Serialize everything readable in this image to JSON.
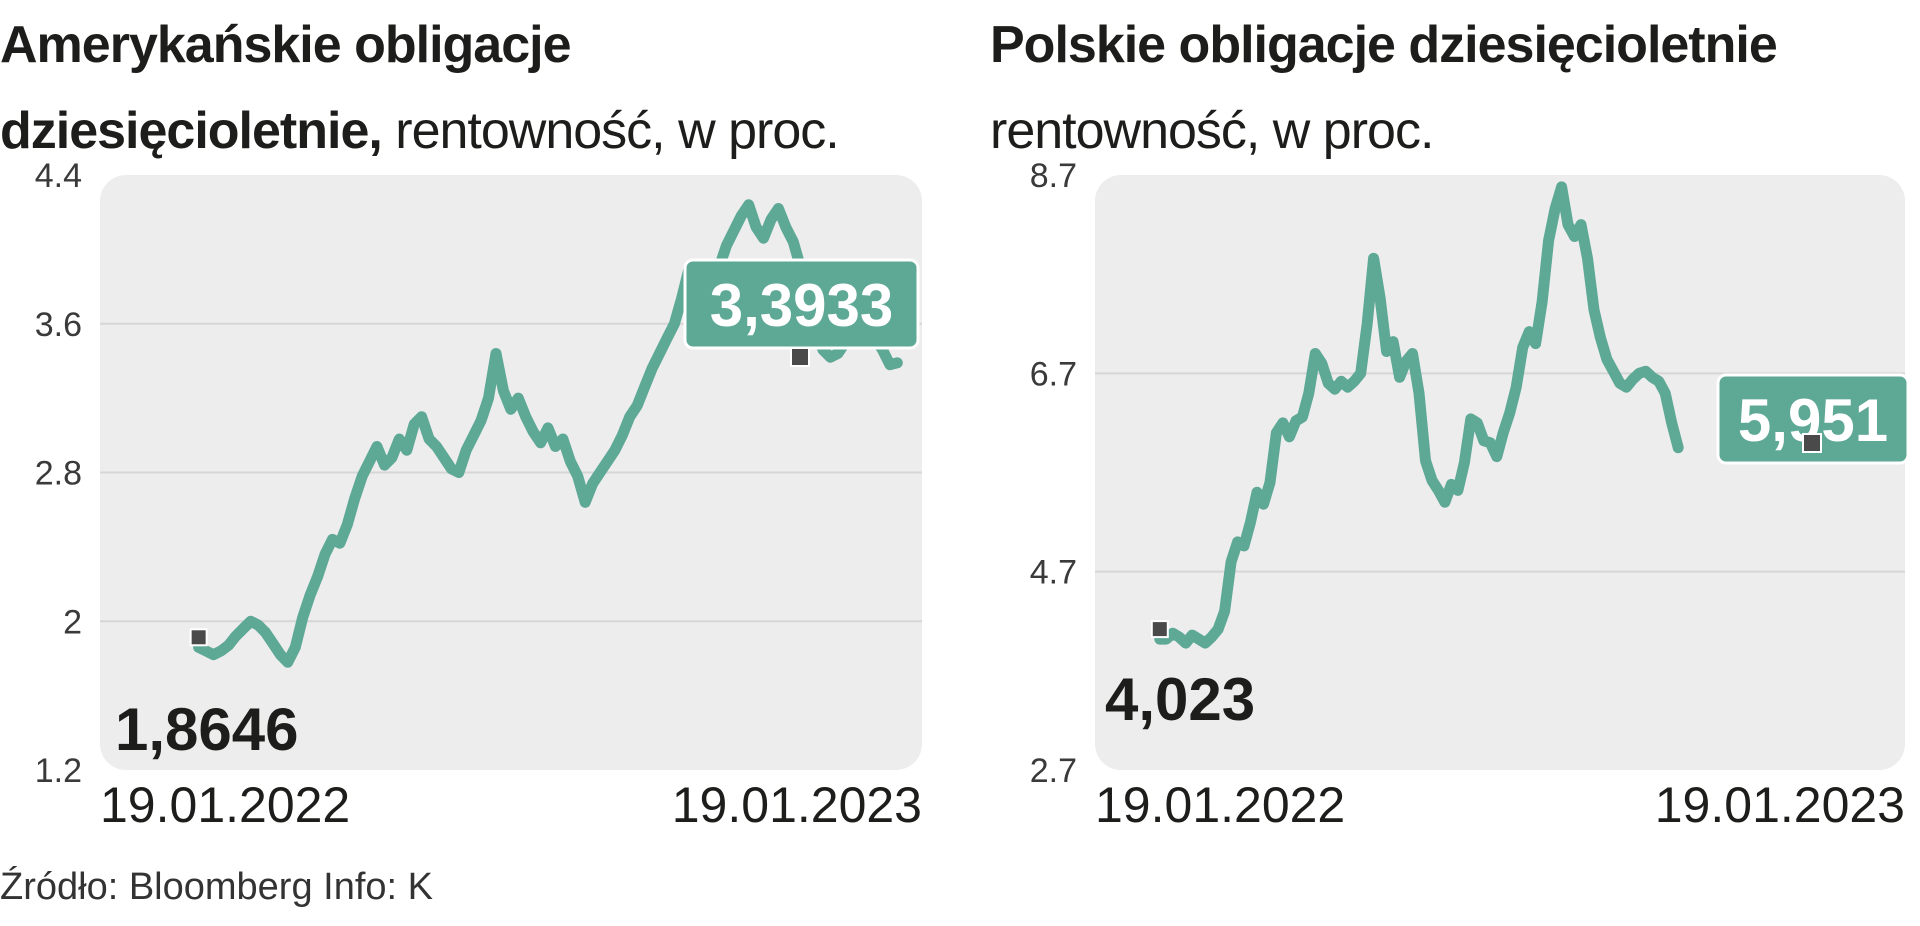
{
  "source": "Źródło: Bloomberg Info: K",
  "colors": {
    "line": "#5ea896",
    "grid": "#d6d6d6",
    "background": "#ededed",
    "marker": "#4a4a4a",
    "label_bg": "#5ea896"
  },
  "chart_data": [
    {
      "type": "line",
      "title": "Amerykańskie obligacje dziesięcioletnie,",
      "subtitle": "rentowność, w proc.",
      "x_start": "19.01.2022",
      "x_end": "19.01.2023",
      "ylim": [
        1.2,
        4.4
      ],
      "yticks": [
        "4.4",
        "3.6",
        "2.8",
        "2",
        "1.2"
      ],
      "xticks": [
        "19.01.2022",
        "19.01.2023"
      ],
      "grid": true,
      "first_label": "1,8646",
      "last_label": "3,3933",
      "series": [
        {
          "values": [
            1.86,
            1.84,
            1.82,
            1.84,
            1.87,
            1.92,
            1.96,
            2.0,
            1.98,
            1.94,
            1.88,
            1.82,
            1.78,
            1.86,
            2.02,
            2.14,
            2.24,
            2.36,
            2.44,
            2.42,
            2.52,
            2.66,
            2.78,
            2.86,
            2.94,
            2.84,
            2.88,
            2.98,
            2.92,
            3.06,
            3.1,
            2.98,
            2.94,
            2.88,
            2.82,
            2.8,
            2.92,
            3.0,
            3.08,
            3.2,
            3.44,
            3.24,
            3.14,
            3.2,
            3.1,
            3.02,
            2.96,
            3.04,
            2.94,
            2.98,
            2.86,
            2.78,
            2.64,
            2.74,
            2.8,
            2.86,
            2.92,
            3.0,
            3.1,
            3.16,
            3.26,
            3.36,
            3.44,
            3.52,
            3.6,
            3.74,
            3.9,
            3.84,
            3.72,
            3.82,
            3.9,
            4.02,
            4.1,
            4.18,
            4.24,
            4.12,
            4.06,
            4.16,
            4.22,
            4.12,
            4.04,
            3.9,
            3.72,
            3.56,
            3.46,
            3.42,
            3.44,
            3.5,
            3.56,
            3.62,
            3.58,
            3.52,
            3.46,
            3.38,
            3.39
          ]
        }
      ]
    },
    {
      "type": "line",
      "title": "Polskie obligacje dziesięcioletnie",
      "subtitle": "rentowność, w proc.",
      "x_start": "19.01.2022",
      "x_end": "19.01.2023",
      "ylim": [
        2.7,
        8.7
      ],
      "yticks": [
        "8.7",
        "6.7",
        "4.7",
        "2.7"
      ],
      "xticks": [
        "19.01.2022",
        "19.01.2023"
      ],
      "grid": true,
      "first_label": "4,023",
      "last_label": "5,951",
      "series": [
        {
          "values": [
            4.02,
            4.02,
            4.08,
            4.04,
            3.98,
            4.06,
            4.02,
            3.98,
            4.04,
            4.12,
            4.3,
            4.8,
            5.0,
            4.96,
            5.2,
            5.5,
            5.38,
            5.6,
            6.1,
            6.2,
            6.06,
            6.22,
            6.26,
            6.5,
            6.9,
            6.8,
            6.6,
            6.54,
            6.62,
            6.56,
            6.62,
            6.7,
            7.2,
            7.86,
            7.46,
            6.92,
            7.02,
            6.66,
            6.82,
            6.9,
            6.5,
            5.82,
            5.62,
            5.52,
            5.4,
            5.58,
            5.52,
            5.8,
            6.24,
            6.2,
            6.02,
            6.0,
            5.86,
            6.1,
            6.3,
            6.56,
            6.96,
            7.12,
            7.0,
            7.42,
            8.04,
            8.36,
            8.58,
            8.2,
            8.08,
            8.2,
            7.86,
            7.34,
            7.06,
            6.84,
            6.72,
            6.6,
            6.56,
            6.64,
            6.7,
            6.72,
            6.66,
            6.62,
            6.5,
            6.2,
            5.95
          ]
        }
      ]
    }
  ]
}
